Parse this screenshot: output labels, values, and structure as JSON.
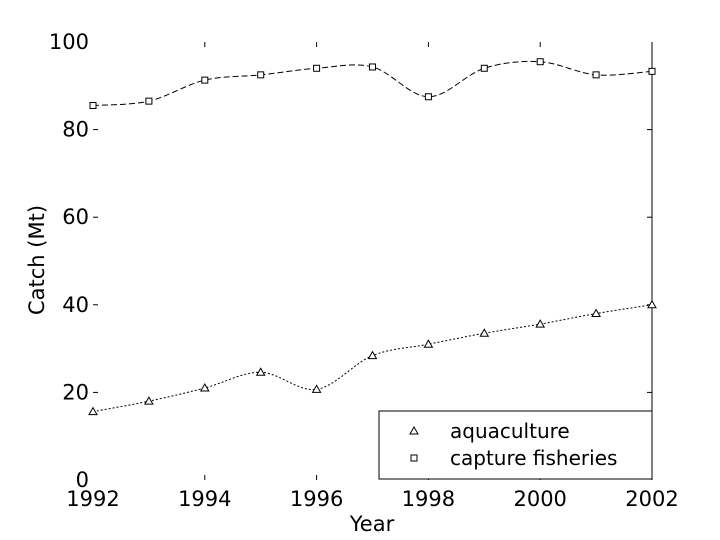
{
  "chart_data": {
    "type": "line",
    "xlabel": "Year",
    "ylabel": "Catch (Mt)",
    "xlim": [
      1992,
      2002
    ],
    "ylim": [
      0,
      100
    ],
    "xticks": [
      1992,
      1994,
      1996,
      1998,
      2000,
      2002
    ],
    "yticks": [
      0,
      20,
      40,
      60,
      80,
      100
    ],
    "x": [
      1992,
      1993,
      1994,
      1995,
      1996,
      1997,
      1998,
      1999,
      2000,
      2001,
      2002
    ],
    "legend_position": "bottom-right",
    "grid": false,
    "series": [
      {
        "name": "aquaculture",
        "marker": "triangle",
        "values": [
          15.6,
          18,
          21,
          24.6,
          20.7,
          28.4,
          31,
          33.5,
          35.6,
          38,
          40
        ]
      },
      {
        "name": "capture fisheries",
        "marker": "square",
        "values": [
          85.5,
          86.5,
          91.3,
          92.5,
          94,
          94.3,
          87.5,
          94,
          95.5,
          92.5,
          93.3
        ]
      }
    ]
  }
}
